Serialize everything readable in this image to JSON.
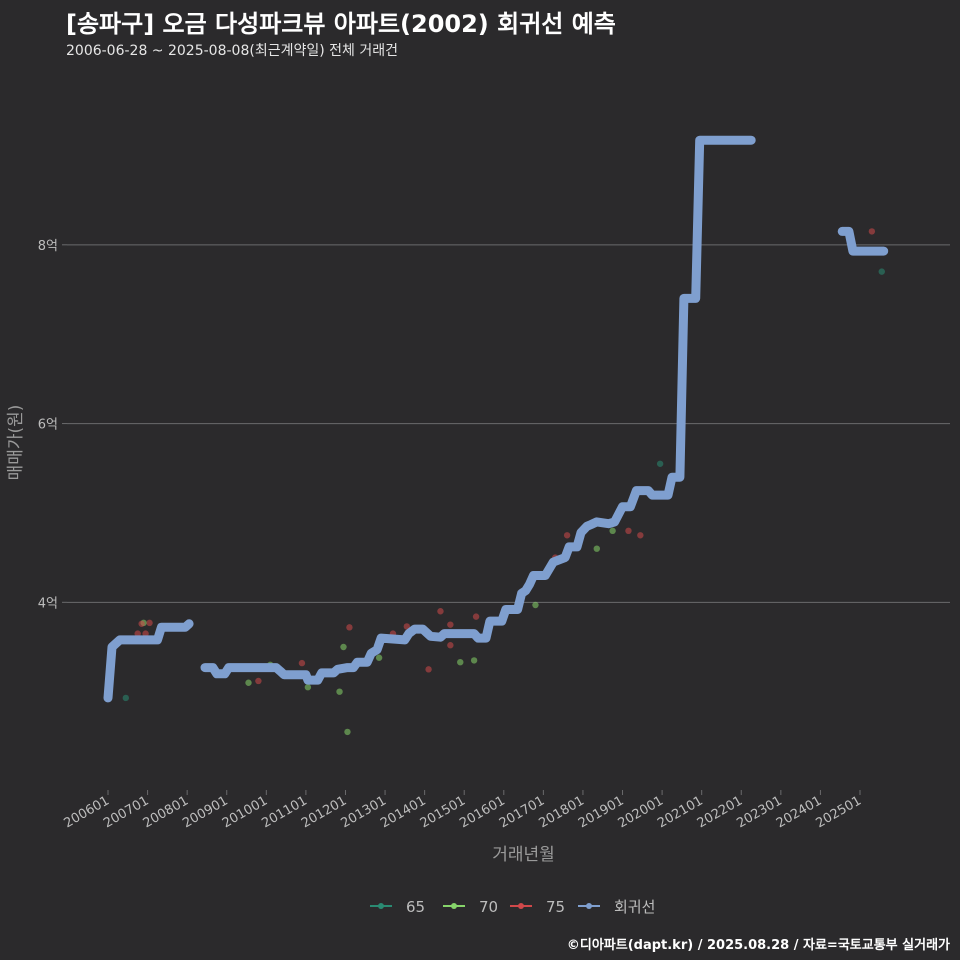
{
  "header": {
    "title": "[송파구] 오금 다성파크뷰 아파트(2002) 회귀선 예측",
    "subtitle": "2006-06-28 ~ 2025-08-08(최근계약일) 전체 거래건"
  },
  "caption": "©디아파트(dapt.kr) / 2025.08.28 / 자료=국토교통부 실거래가",
  "colors": {
    "background": "#2b2a2c",
    "grid": "#6a6a6c",
    "axis_text": "#bdbdbd",
    "s65": "#2a8a72",
    "s70": "#86d46a",
    "s75": "#d0484a",
    "regression": "#7f9fcf"
  },
  "chart_data": {
    "type": "scatter",
    "title": "[송파구] 오금 다성파크뷰 아파트(2002) 회귀선 예측",
    "xlabel": "거래년월",
    "ylabel": "매매가(원)",
    "x_unit": "year (decimal)",
    "xlim": [
      2005.5,
      2027.0
    ],
    "ylim": [
      1.9,
      9.9
    ],
    "y_ticks": [
      4,
      6,
      8
    ],
    "y_tick_labels": [
      "4억",
      "6억",
      "8억"
    ],
    "x_ticks": [
      2006,
      2007,
      2008,
      2009,
      2010,
      2011,
      2012,
      2013,
      2014,
      2015,
      2016,
      2017,
      2018,
      2019,
      2020,
      2021,
      2022,
      2023,
      2024,
      2025
    ],
    "x_tick_labels": [
      "200601",
      "200701",
      "200801",
      "200901",
      "201001",
      "201101",
      "201201",
      "201301",
      "201401",
      "201501",
      "201601",
      "201701",
      "201801",
      "201901",
      "202001",
      "202101",
      "202201",
      "202301",
      "202401",
      "202501"
    ],
    "legend": {
      "position": "bottom",
      "items": [
        {
          "label": "65",
          "key": "s65"
        },
        {
          "label": "70",
          "key": "s70"
        },
        {
          "label": "75",
          "key": "s75"
        },
        {
          "label": "회귀선",
          "key": "regression"
        }
      ]
    },
    "series": [
      {
        "name": "65",
        "key": "s65",
        "points": [
          [
            2006.45,
            2.93
          ],
          [
            2019.95,
            5.55
          ],
          [
            2025.55,
            7.7
          ]
        ]
      },
      {
        "name": "70",
        "key": "s70",
        "points": [
          [
            2006.9,
            3.77
          ],
          [
            2009.55,
            3.1
          ],
          [
            2010.1,
            3.3
          ],
          [
            2011.05,
            3.05
          ],
          [
            2011.85,
            3.0
          ],
          [
            2011.95,
            3.5
          ],
          [
            2012.05,
            2.55
          ],
          [
            2012.85,
            3.38
          ],
          [
            2014.9,
            3.33
          ],
          [
            2015.25,
            3.35
          ],
          [
            2016.8,
            3.97
          ],
          [
            2018.35,
            4.6
          ],
          [
            2018.75,
            4.8
          ]
        ]
      },
      {
        "name": "75",
        "key": "s75",
        "points": [
          [
            2006.75,
            3.65
          ],
          [
            2006.85,
            3.76
          ],
          [
            2006.95,
            3.65
          ],
          [
            2007.05,
            3.77
          ],
          [
            2009.8,
            3.12
          ],
          [
            2010.9,
            3.32
          ],
          [
            2012.1,
            3.72
          ],
          [
            2013.2,
            3.65
          ],
          [
            2013.55,
            3.73
          ],
          [
            2014.1,
            3.25
          ],
          [
            2014.4,
            3.9
          ],
          [
            2014.65,
            3.52
          ],
          [
            2014.65,
            3.75
          ],
          [
            2015.3,
            3.84
          ],
          [
            2017.3,
            4.5
          ],
          [
            2017.6,
            4.75
          ],
          [
            2019.15,
            4.8
          ],
          [
            2019.45,
            4.75
          ],
          [
            2025.3,
            8.15
          ]
        ]
      }
    ],
    "regression": [
      {
        "points": [
          [
            2006.0,
            2.93
          ],
          [
            2006.1,
            3.5
          ],
          [
            2006.3,
            3.58
          ],
          [
            2007.25,
            3.58
          ],
          [
            2007.35,
            3.72
          ],
          [
            2007.95,
            3.72
          ],
          [
            2008.05,
            3.76
          ]
        ]
      },
      {
        "points": [
          [
            2008.45,
            3.27
          ],
          [
            2008.65,
            3.27
          ],
          [
            2008.75,
            3.2
          ],
          [
            2008.95,
            3.2
          ],
          [
            2009.05,
            3.27
          ],
          [
            2010.25,
            3.27
          ],
          [
            2010.35,
            3.23
          ],
          [
            2010.45,
            3.19
          ],
          [
            2011.0,
            3.19
          ],
          [
            2011.05,
            3.13
          ],
          [
            2011.3,
            3.13
          ],
          [
            2011.4,
            3.21
          ],
          [
            2011.7,
            3.21
          ],
          [
            2011.8,
            3.25
          ],
          [
            2012.05,
            3.27
          ],
          [
            2012.2,
            3.27
          ],
          [
            2012.3,
            3.33
          ],
          [
            2012.55,
            3.33
          ],
          [
            2012.65,
            3.43
          ],
          [
            2012.8,
            3.47
          ],
          [
            2012.9,
            3.6
          ],
          [
            2013.5,
            3.58
          ],
          [
            2013.6,
            3.65
          ],
          [
            2013.75,
            3.7
          ],
          [
            2013.95,
            3.7
          ],
          [
            2014.15,
            3.62
          ],
          [
            2014.4,
            3.61
          ],
          [
            2014.5,
            3.65
          ],
          [
            2014.9,
            3.65
          ],
          [
            2015.25,
            3.65
          ],
          [
            2015.35,
            3.6
          ],
          [
            2015.55,
            3.6
          ],
          [
            2015.65,
            3.79
          ],
          [
            2015.95,
            3.79
          ],
          [
            2016.05,
            3.92
          ],
          [
            2016.35,
            3.92
          ],
          [
            2016.45,
            4.1
          ],
          [
            2016.55,
            4.13
          ],
          [
            2016.65,
            4.2
          ],
          [
            2016.75,
            4.3
          ],
          [
            2017.05,
            4.3
          ],
          [
            2017.25,
            4.45
          ],
          [
            2017.55,
            4.5
          ],
          [
            2017.65,
            4.62
          ],
          [
            2017.85,
            4.62
          ],
          [
            2017.95,
            4.78
          ],
          [
            2018.1,
            4.85
          ],
          [
            2018.2,
            4.87
          ],
          [
            2018.35,
            4.9
          ],
          [
            2018.65,
            4.88
          ],
          [
            2018.8,
            4.9
          ],
          [
            2019.0,
            5.07
          ],
          [
            2019.2,
            5.07
          ],
          [
            2019.35,
            5.25
          ],
          [
            2019.65,
            5.25
          ],
          [
            2019.75,
            5.2
          ],
          [
            2020.15,
            5.2
          ],
          [
            2020.25,
            5.4
          ],
          [
            2020.45,
            5.4
          ],
          [
            2020.55,
            7.4
          ],
          [
            2020.85,
            7.4
          ],
          [
            2020.95,
            9.17
          ],
          [
            2022.25,
            9.17
          ]
        ]
      },
      {
        "points": [
          [
            2024.55,
            8.15
          ],
          [
            2024.72,
            8.15
          ],
          [
            2024.82,
            7.93
          ],
          [
            2025.6,
            7.93
          ]
        ]
      }
    ]
  }
}
